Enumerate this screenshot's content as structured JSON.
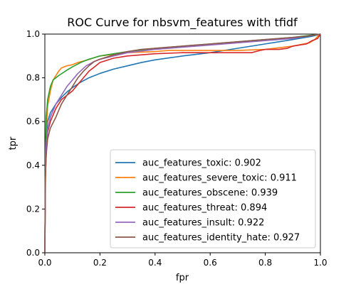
{
  "chart_data": {
    "type": "line",
    "title": "ROC Curve for nbsvm_features with tfidf",
    "xlabel": "fpr",
    "ylabel": "tpr",
    "xlim": [
      0.0,
      1.0
    ],
    "ylim": [
      0.0,
      1.0
    ],
    "grid": false,
    "legend_position": "lower-right",
    "x_ticks": [
      "0.0",
      "0.2",
      "0.4",
      "0.6",
      "0.8",
      "1.0"
    ],
    "y_ticks": [
      "0.0",
      "0.2",
      "0.4",
      "0.6",
      "0.8",
      "1.0"
    ],
    "series": [
      {
        "name": "auc_features_toxic: 0.902",
        "color": "#1f77b4",
        "points": [
          [
            0,
            0
          ],
          [
            0.002,
            0.35
          ],
          [
            0.005,
            0.52
          ],
          [
            0.01,
            0.6
          ],
          [
            0.02,
            0.64
          ],
          [
            0.04,
            0.68
          ],
          [
            0.06,
            0.71
          ],
          [
            0.08,
            0.735
          ],
          [
            0.1,
            0.755
          ],
          [
            0.13,
            0.78
          ],
          [
            0.16,
            0.8
          ],
          [
            0.2,
            0.82
          ],
          [
            0.25,
            0.84
          ],
          [
            0.3,
            0.855
          ],
          [
            0.35,
            0.87
          ],
          [
            0.4,
            0.882
          ],
          [
            0.5,
            0.9
          ],
          [
            0.6,
            0.915
          ],
          [
            0.7,
            0.935
          ],
          [
            0.8,
            0.955
          ],
          [
            0.9,
            0.975
          ],
          [
            0.97,
            0.99
          ],
          [
            1.0,
            1.0
          ]
        ]
      },
      {
        "name": "auc_features_severe_toxic: 0.911",
        "color": "#ff7f0e",
        "points": [
          [
            0,
            0
          ],
          [
            0.002,
            0.3
          ],
          [
            0.005,
            0.55
          ],
          [
            0.01,
            0.67
          ],
          [
            0.02,
            0.74
          ],
          [
            0.03,
            0.79
          ],
          [
            0.05,
            0.83
          ],
          [
            0.06,
            0.845
          ],
          [
            0.08,
            0.855
          ],
          [
            0.1,
            0.86
          ],
          [
            0.12,
            0.87
          ],
          [
            0.15,
            0.88
          ],
          [
            0.2,
            0.9
          ],
          [
            0.3,
            0.915
          ],
          [
            0.4,
            0.92
          ],
          [
            0.45,
            0.925
          ],
          [
            0.5,
            0.925
          ],
          [
            0.6,
            0.925
          ],
          [
            0.7,
            0.925
          ],
          [
            0.8,
            0.93
          ],
          [
            0.9,
            0.945
          ],
          [
            0.96,
            0.96
          ],
          [
            0.98,
            0.975
          ],
          [
            0.99,
            0.99
          ],
          [
            1.0,
            1.0
          ]
        ]
      },
      {
        "name": "auc_features_obscene: 0.939",
        "color": "#2ca02c",
        "points": [
          [
            0,
            0
          ],
          [
            0.002,
            0.45
          ],
          [
            0.005,
            0.62
          ],
          [
            0.01,
            0.7
          ],
          [
            0.02,
            0.76
          ],
          [
            0.03,
            0.79
          ],
          [
            0.05,
            0.81
          ],
          [
            0.08,
            0.835
          ],
          [
            0.1,
            0.85
          ],
          [
            0.13,
            0.87
          ],
          [
            0.16,
            0.885
          ],
          [
            0.2,
            0.9
          ],
          [
            0.25,
            0.91
          ],
          [
            0.3,
            0.92
          ],
          [
            0.4,
            0.935
          ],
          [
            0.5,
            0.945
          ],
          [
            0.6,
            0.955
          ],
          [
            0.7,
            0.965
          ],
          [
            0.8,
            0.975
          ],
          [
            0.9,
            0.985
          ],
          [
            1.0,
            1.0
          ]
        ]
      },
      {
        "name": "auc_features_threat: 0.894",
        "color": "#d62728",
        "points": [
          [
            0,
            0
          ],
          [
            0.002,
            0.35
          ],
          [
            0.005,
            0.45
          ],
          [
            0.01,
            0.55
          ],
          [
            0.02,
            0.6
          ],
          [
            0.04,
            0.66
          ],
          [
            0.06,
            0.7
          ],
          [
            0.08,
            0.72
          ],
          [
            0.1,
            0.74
          ],
          [
            0.12,
            0.77
          ],
          [
            0.14,
            0.8
          ],
          [
            0.16,
            0.83
          ],
          [
            0.18,
            0.85
          ],
          [
            0.2,
            0.87
          ],
          [
            0.25,
            0.89
          ],
          [
            0.3,
            0.9
          ],
          [
            0.4,
            0.91
          ],
          [
            0.5,
            0.915
          ],
          [
            0.6,
            0.915
          ],
          [
            0.7,
            0.915
          ],
          [
            0.75,
            0.915
          ],
          [
            0.78,
            0.925
          ],
          [
            0.8,
            0.93
          ],
          [
            0.85,
            0.93
          ],
          [
            0.88,
            0.935
          ],
          [
            0.9,
            0.945
          ],
          [
            0.95,
            0.955
          ],
          [
            0.97,
            0.97
          ],
          [
            0.99,
            0.98
          ],
          [
            1.0,
            1.0
          ]
        ]
      },
      {
        "name": "auc_features_insult: 0.922",
        "color": "#9467bd",
        "points": [
          [
            0,
            0
          ],
          [
            0.002,
            0.4
          ],
          [
            0.005,
            0.5
          ],
          [
            0.01,
            0.56
          ],
          [
            0.02,
            0.62
          ],
          [
            0.04,
            0.68
          ],
          [
            0.06,
            0.72
          ],
          [
            0.08,
            0.76
          ],
          [
            0.1,
            0.79
          ],
          [
            0.12,
            0.82
          ],
          [
            0.15,
            0.855
          ],
          [
            0.18,
            0.875
          ],
          [
            0.2,
            0.885
          ],
          [
            0.25,
            0.9
          ],
          [
            0.3,
            0.915
          ],
          [
            0.4,
            0.93
          ],
          [
            0.5,
            0.94
          ],
          [
            0.6,
            0.95
          ],
          [
            0.7,
            0.96
          ],
          [
            0.8,
            0.97
          ],
          [
            0.9,
            0.98
          ],
          [
            1.0,
            1.0
          ]
        ]
      },
      {
        "name": "auc_features_identity_hate: 0.927",
        "color": "#8c564b",
        "points": [
          [
            0,
            0
          ],
          [
            0.002,
            0.35
          ],
          [
            0.005,
            0.45
          ],
          [
            0.01,
            0.52
          ],
          [
            0.02,
            0.57
          ],
          [
            0.04,
            0.62
          ],
          [
            0.06,
            0.68
          ],
          [
            0.08,
            0.72
          ],
          [
            0.1,
            0.76
          ],
          [
            0.12,
            0.8
          ],
          [
            0.14,
            0.83
          ],
          [
            0.16,
            0.855
          ],
          [
            0.18,
            0.875
          ],
          [
            0.2,
            0.885
          ],
          [
            0.25,
            0.905
          ],
          [
            0.3,
            0.92
          ],
          [
            0.35,
            0.93
          ],
          [
            0.4,
            0.935
          ],
          [
            0.5,
            0.945
          ],
          [
            0.6,
            0.955
          ],
          [
            0.7,
            0.965
          ],
          [
            0.8,
            0.975
          ],
          [
            0.9,
            0.985
          ],
          [
            0.95,
            0.99
          ],
          [
            1.0,
            1.0
          ]
        ]
      }
    ]
  }
}
